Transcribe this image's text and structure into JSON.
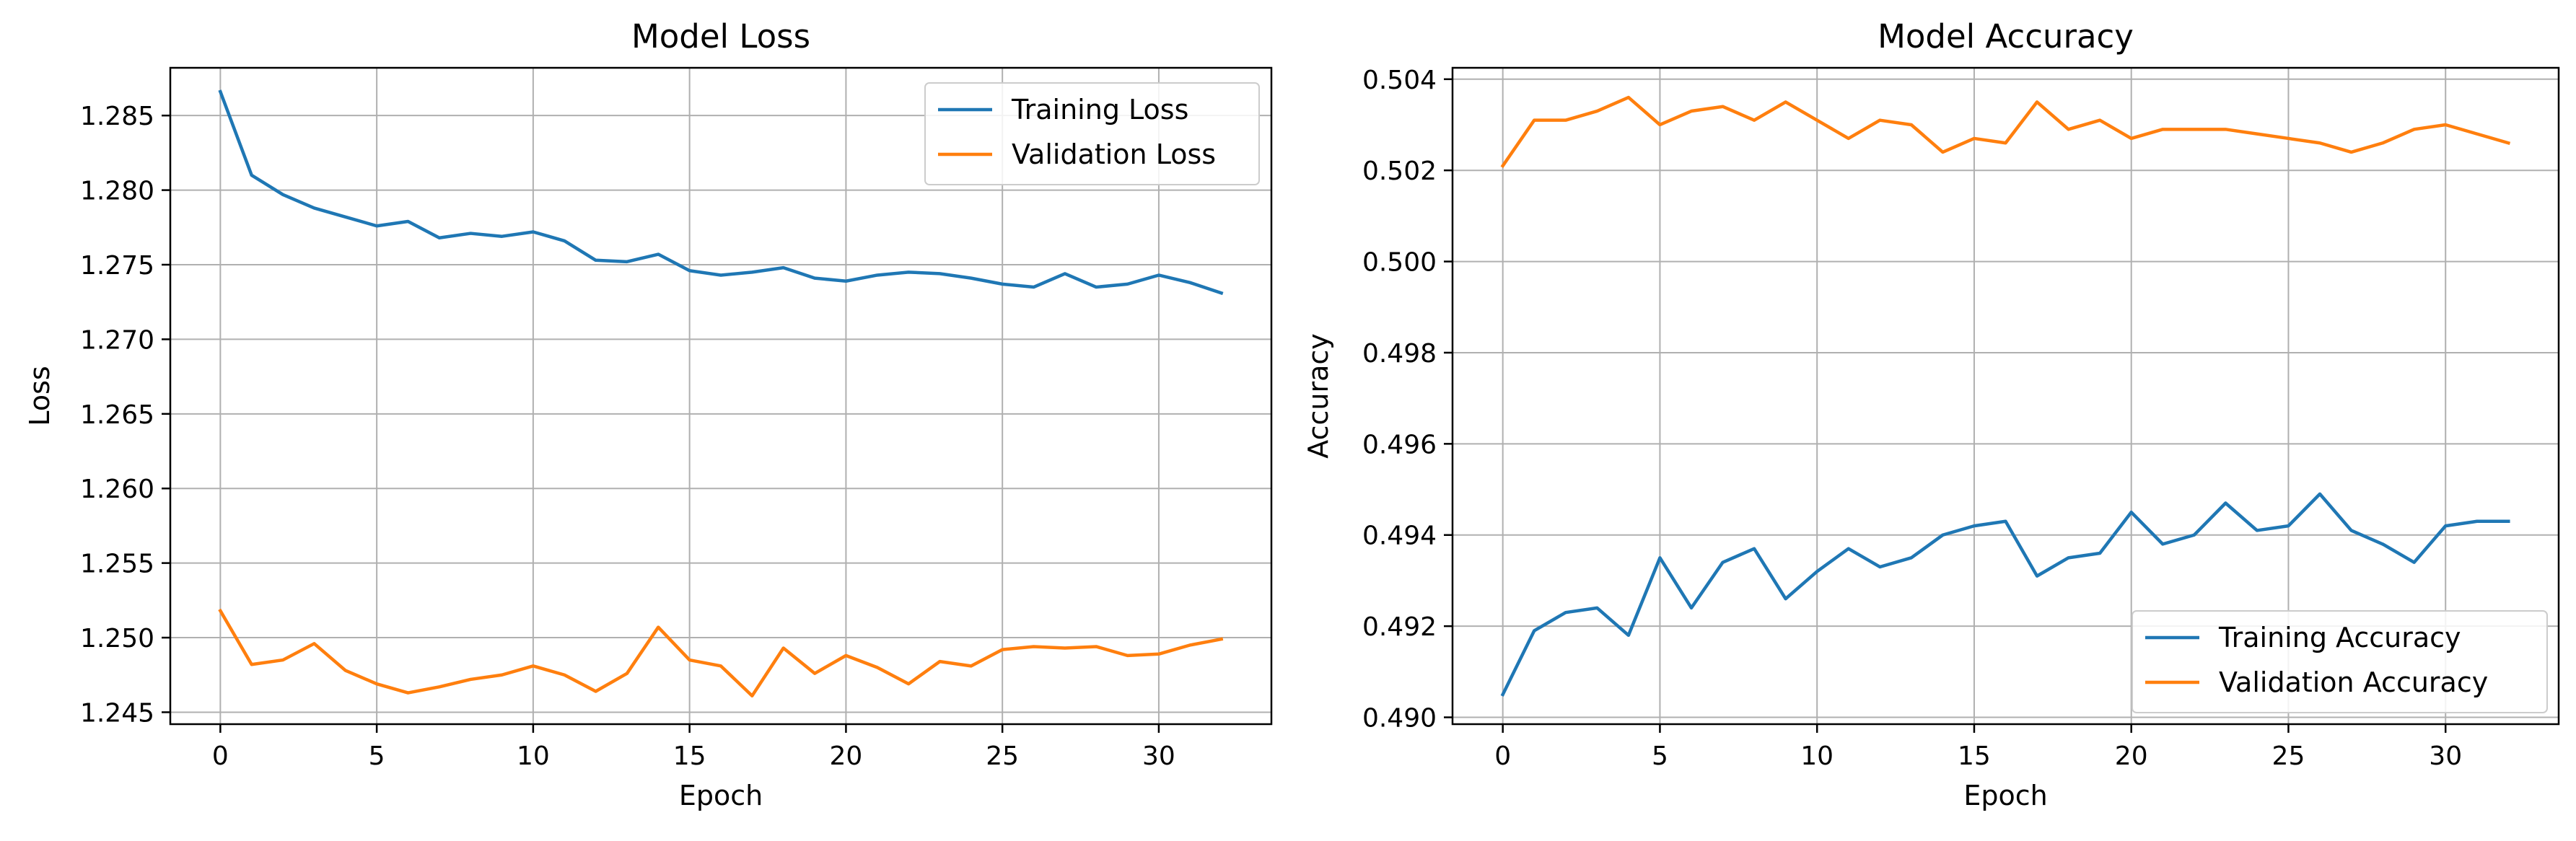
{
  "chart_data": [
    {
      "type": "line",
      "title": "Model Loss",
      "xlabel": "Epoch",
      "ylabel": "Loss",
      "xlim": [
        -1.6,
        33.6
      ],
      "ylim": [
        1.2442,
        1.2882
      ],
      "xticks": [
        0,
        5,
        10,
        15,
        20,
        25,
        30
      ],
      "yticks": [
        1.245,
        1.25,
        1.255,
        1.26,
        1.265,
        1.27,
        1.275,
        1.28,
        1.285
      ],
      "ytick_labels": [
        "1.245",
        "1.250",
        "1.255",
        "1.260",
        "1.265",
        "1.270",
        "1.275",
        "1.280",
        "1.285"
      ],
      "grid": true,
      "legend_position": "top-right",
      "series": [
        {
          "name": "Training Loss",
          "color": "#1f77b4",
          "x": [
            0,
            1,
            2,
            3,
            4,
            5,
            6,
            7,
            8,
            9,
            10,
            11,
            12,
            13,
            14,
            15,
            16,
            17,
            18,
            19,
            20,
            21,
            22,
            23,
            24,
            25,
            26,
            27,
            28,
            29,
            30,
            31,
            32
          ],
          "values": [
            1.2866,
            1.281,
            1.2797,
            1.2788,
            1.2782,
            1.2776,
            1.2779,
            1.2768,
            1.2771,
            1.2769,
            1.2772,
            1.2766,
            1.2753,
            1.2752,
            1.2757,
            1.2746,
            1.2743,
            1.2745,
            1.2748,
            1.2741,
            1.2739,
            1.2743,
            1.2745,
            1.2744,
            1.2741,
            1.2737,
            1.2735,
            1.2744,
            1.2735,
            1.2737,
            1.2743,
            1.2738,
            1.2731
          ]
        },
        {
          "name": "Validation Loss",
          "color": "#ff7f0e",
          "x": [
            0,
            1,
            2,
            3,
            4,
            5,
            6,
            7,
            8,
            9,
            10,
            11,
            12,
            13,
            14,
            15,
            16,
            17,
            18,
            19,
            20,
            21,
            22,
            23,
            24,
            25,
            26,
            27,
            28,
            29,
            30,
            31,
            32
          ],
          "values": [
            1.2518,
            1.2482,
            1.2485,
            1.2496,
            1.2478,
            1.2469,
            1.2463,
            1.2467,
            1.2472,
            1.2475,
            1.2481,
            1.2475,
            1.2464,
            1.2476,
            1.2507,
            1.2485,
            1.2481,
            1.2461,
            1.2493,
            1.2476,
            1.2488,
            1.248,
            1.2469,
            1.2484,
            1.2481,
            1.2492,
            1.2494,
            1.2493,
            1.2494,
            1.2488,
            1.2489,
            1.2495,
            1.2499
          ]
        }
      ]
    },
    {
      "type": "line",
      "title": "Model Accuracy",
      "xlabel": "Epoch",
      "ylabel": "Accuracy",
      "xlim": [
        -1.6,
        33.6
      ],
      "ylim": [
        0.48985,
        0.50425
      ],
      "xticks": [
        0,
        5,
        10,
        15,
        20,
        25,
        30
      ],
      "yticks": [
        0.49,
        0.492,
        0.494,
        0.496,
        0.498,
        0.5,
        0.502,
        0.504
      ],
      "ytick_labels": [
        "0.490",
        "0.492",
        "0.494",
        "0.496",
        "0.498",
        "0.500",
        "0.502",
        "0.504"
      ],
      "grid": true,
      "legend_position": "bottom-right",
      "series": [
        {
          "name": "Training Accuracy",
          "color": "#1f77b4",
          "x": [
            0,
            1,
            2,
            3,
            4,
            5,
            6,
            7,
            8,
            9,
            10,
            11,
            12,
            13,
            14,
            15,
            16,
            17,
            18,
            19,
            20,
            21,
            22,
            23,
            24,
            25,
            26,
            27,
            28,
            29,
            30,
            31,
            32
          ],
          "values": [
            0.4905,
            0.4919,
            0.4923,
            0.4924,
            0.4918,
            0.4935,
            0.4924,
            0.4934,
            0.4937,
            0.4926,
            0.4932,
            0.4937,
            0.4933,
            0.4935,
            0.494,
            0.4942,
            0.4943,
            0.4931,
            0.4935,
            0.4936,
            0.4945,
            0.4938,
            0.494,
            0.4947,
            0.4941,
            0.4942,
            0.4949,
            0.4941,
            0.4938,
            0.4934,
            0.4942,
            0.4943,
            0.4943
          ]
        },
        {
          "name": "Validation Accuracy",
          "color": "#ff7f0e",
          "x": [
            0,
            1,
            2,
            3,
            4,
            5,
            6,
            7,
            8,
            9,
            10,
            11,
            12,
            13,
            14,
            15,
            16,
            17,
            18,
            19,
            20,
            21,
            22,
            23,
            24,
            25,
            26,
            27,
            28,
            29,
            30,
            31,
            32
          ],
          "values": [
            0.5021,
            0.5031,
            0.5031,
            0.5033,
            0.5036,
            0.503,
            0.5033,
            0.5034,
            0.5031,
            0.5035,
            0.5031,
            0.5027,
            0.5031,
            0.503,
            0.5024,
            0.5027,
            0.5026,
            0.5035,
            0.5029,
            0.5031,
            0.5027,
            0.5029,
            0.5029,
            0.5029,
            0.5028,
            0.5027,
            0.5026,
            0.5024,
            0.5026,
            0.5029,
            0.503,
            0.5028,
            0.5026
          ]
        }
      ]
    }
  ]
}
